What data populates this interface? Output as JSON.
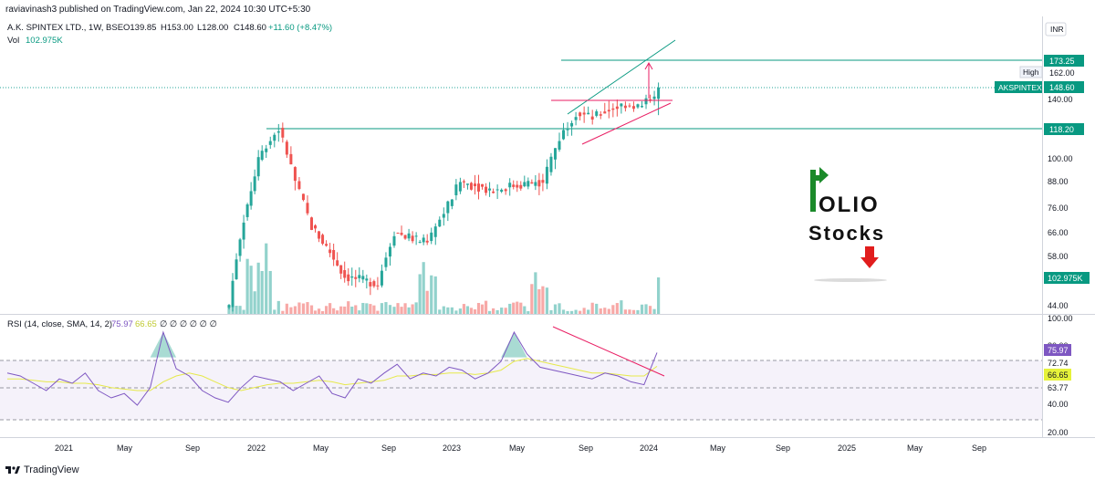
{
  "header": {
    "publisher": "raviavinash3 published on TradingView.com, Jan 22, 2024 10:30 UTC+5:30",
    "symbol_line": "A.K. SPINTEX LTD., 1W, BSE",
    "ohlc": {
      "o": "O139.85",
      "h": "H153.00",
      "l": "L128.00",
      "c": "C148.60",
      "chg": "+11.60 (+8.47%)"
    },
    "vol_label": "Vol",
    "vol_value": "102.975K"
  },
  "currency": "INR",
  "price_axis": {
    "ticks": [
      "162.00",
      "140.00",
      "100.00",
      "88.00",
      "76.00",
      "66.00",
      "58.00",
      "44.00"
    ],
    "tags": {
      "level_upper": "173.25",
      "high_label": "High",
      "high_value": "162.00",
      "symbol": "AKSPINTEX",
      "last": "148.60",
      "level_lower": "118.20",
      "volume": "102.975K"
    }
  },
  "rsi": {
    "legend": "RSI (14, close, SMA, 14, 2)",
    "rsi_value": "75.97",
    "sma_value": "66.65",
    "zeros": "∅ ∅ ∅ ∅ ∅ ∅",
    "axis_ticks": [
      "100.00",
      "80.00",
      "72.74",
      "63.77",
      "40.00",
      "20.00"
    ],
    "tags": {
      "rsi": "75.97",
      "sma": "66.65"
    }
  },
  "time_axis": [
    "2021",
    "May",
    "Sep",
    "2022",
    "May",
    "Sep",
    "2023",
    "May",
    "Sep",
    "2024",
    "May",
    "Sep",
    "2025",
    "May",
    "Sep"
  ],
  "watermark": {
    "line1": "OLIO",
    "line2": "Stocks"
  },
  "footer": {
    "brand": "TradingView"
  },
  "colors": {
    "up": "#26a69a",
    "down": "#ef5350",
    "level": "#089981",
    "pattern": "#e91e63",
    "rsi": "#7e57c2",
    "rsi_sma": "#cddc39",
    "tag_green": "#089981",
    "tag_purple": "#7e57c2",
    "tag_yellow": "#e6f23a"
  },
  "chart_data": [
    {
      "type": "candlestick",
      "title": "A.K. SPINTEX LTD., 1W, BSE",
      "ylabel": "INR",
      "ylim": [
        40,
        180
      ],
      "x": [
        "2021",
        "May",
        "Sep",
        "2022",
        "May",
        "Sep",
        "2023",
        "May",
        "Sep",
        "2024"
      ],
      "close_path": [
        {
          "x": "2021-11",
          "close": 44
        },
        {
          "x": "2022-01",
          "close": 105
        },
        {
          "x": "2022-02",
          "close": 118
        },
        {
          "x": "2022-03",
          "close": 88
        },
        {
          "x": "2022-04",
          "close": 68
        },
        {
          "x": "2022-06",
          "close": 52
        },
        {
          "x": "2022-08",
          "close": 50
        },
        {
          "x": "2022-09",
          "close": 66
        },
        {
          "x": "2022-11",
          "close": 62
        },
        {
          "x": "2022-12",
          "close": 74
        },
        {
          "x": "2023-01",
          "close": 88
        },
        {
          "x": "2023-03",
          "close": 84
        },
        {
          "x": "2023-04",
          "close": 86
        },
        {
          "x": "2023-06",
          "close": 88
        },
        {
          "x": "2023-07",
          "close": 112
        },
        {
          "x": "2023-08",
          "close": 130
        },
        {
          "x": "2023-09",
          "close": 126
        },
        {
          "x": "2023-10",
          "close": 132
        },
        {
          "x": "2023-11",
          "close": 136
        },
        {
          "x": "2023-12",
          "close": 134
        },
        {
          "x": "2024-01",
          "close": 148.6
        }
      ],
      "horizontal_levels": [
        173.25,
        118.2
      ],
      "last_price": 148.6,
      "high": 162.0
    },
    {
      "type": "bar",
      "title": "Vol",
      "series": [
        {
          "name": "Vol",
          "last": "102.975K"
        }
      ]
    },
    {
      "type": "line",
      "title": "RSI (14, close, SMA, 14, 2)",
      "ylim": [
        20,
        100
      ],
      "bands": [
        72.74,
        63.77,
        40,
        30
      ],
      "series": [
        {
          "name": "RSI",
          "last": 75.97,
          "values": [
            62,
            60,
            55,
            50,
            58,
            55,
            62,
            50,
            45,
            48,
            40,
            52,
            90,
            65,
            60,
            50,
            45,
            42,
            52,
            60,
            58,
            56,
            50,
            55,
            60,
            48,
            45,
            58,
            55,
            62,
            68,
            58,
            62,
            60,
            66,
            64,
            58,
            62,
            70,
            90,
            75,
            66,
            64,
            62,
            60,
            58,
            62,
            60,
            56,
            54,
            76
          ]
        },
        {
          "name": "RSI SMA",
          "last": 66.65,
          "values": [
            58,
            58,
            57,
            56,
            56,
            55,
            55,
            54,
            52,
            51,
            50,
            50,
            56,
            60,
            62,
            60,
            56,
            52,
            50,
            52,
            54,
            55,
            55,
            56,
            57,
            56,
            54,
            55,
            56,
            57,
            60,
            60,
            61,
            61,
            62,
            62,
            61,
            62,
            64,
            70,
            72,
            70,
            68,
            66,
            64,
            62,
            62,
            61,
            60,
            60,
            66.65
          ]
        }
      ]
    }
  ]
}
